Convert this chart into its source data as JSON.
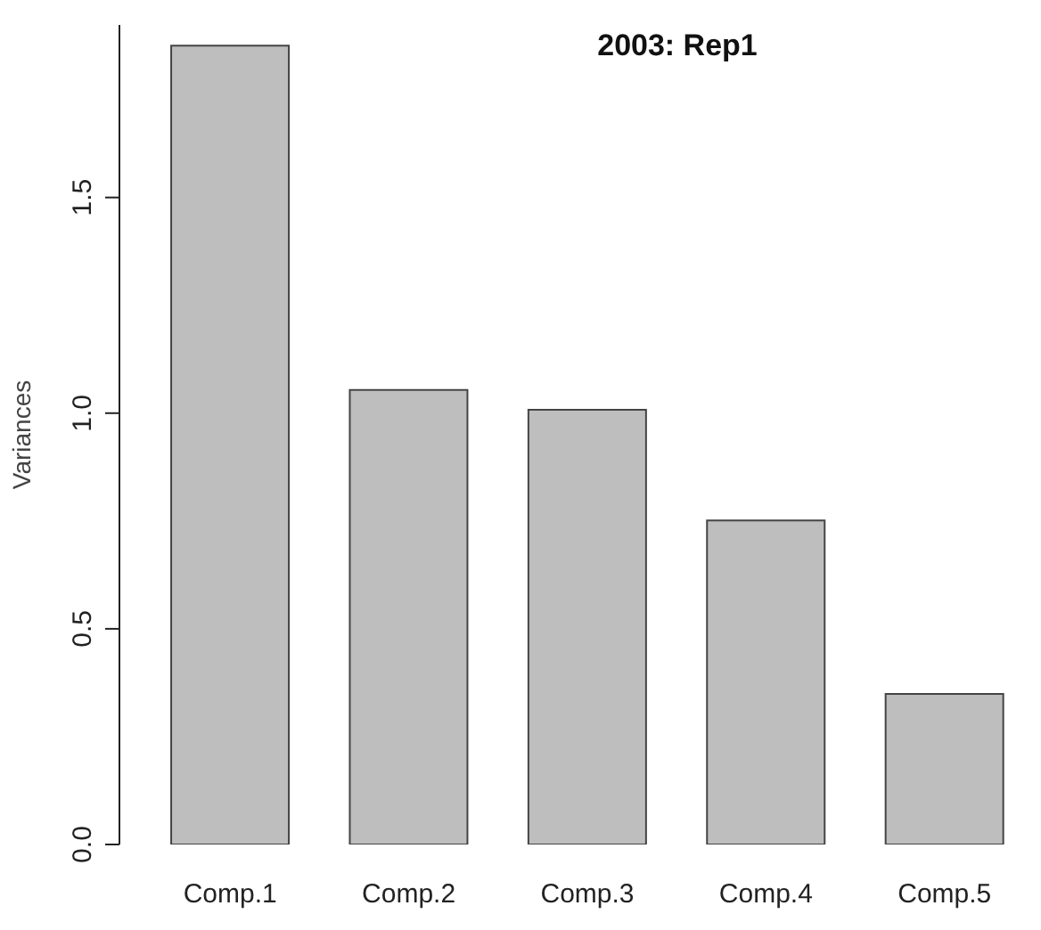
{
  "chart_data": {
    "type": "bar",
    "title": "2003: Rep1",
    "ylabel": "Variances",
    "categories": [
      "Comp.1",
      "Comp.2",
      "Comp.3",
      "Comp.4",
      "Comp.5"
    ],
    "values": [
      1.852,
      1.054,
      1.008,
      0.751,
      0.349
    ],
    "color": "#bebebe",
    "ylim": [
      0,
      1.9
    ],
    "yticks": [
      {
        "value": 0,
        "label": "0.0"
      },
      {
        "value": 0.5,
        "label": "0.5"
      },
      {
        "value": 1,
        "label": "1.0"
      },
      {
        "value": 1.5,
        "label": "1.5"
      }
    ],
    "grid": false
  }
}
